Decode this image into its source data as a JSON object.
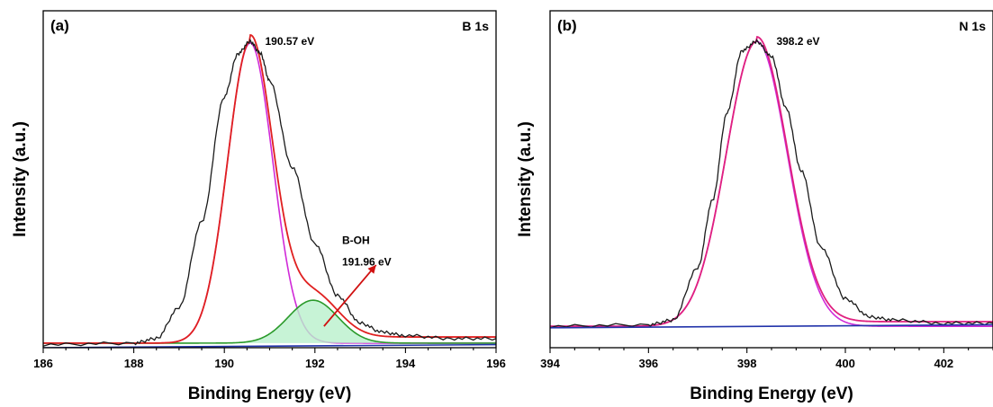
{
  "chart_data": [
    {
      "type": "line",
      "panel_label": "(a)",
      "title": "B 1s",
      "xlabel": "Binding Energy (eV)",
      "ylabel": "Intensity (a.u.)",
      "xlim": [
        186,
        196
      ],
      "ylim": [
        0,
        1.1
      ],
      "xticks": [
        186,
        188,
        190,
        192,
        194,
        196
      ],
      "grid": false,
      "background": 0.015,
      "series": [
        {
          "role": "raw",
          "color": "#1a1a1a",
          "x": [
            186,
            188,
            188.5,
            189,
            189.5,
            190,
            190.3,
            190.57,
            190.8,
            191,
            191.5,
            192,
            192.5,
            193,
            193.5,
            194,
            195,
            196
          ],
          "y": [
            0.01,
            0.015,
            0.03,
            0.13,
            0.41,
            0.82,
            0.96,
            1.0,
            0.96,
            0.87,
            0.59,
            0.34,
            0.17,
            0.08,
            0.05,
            0.04,
            0.03,
            0.03
          ]
        },
        {
          "role": "envelope",
          "color": "#e02020",
          "peaks": [
            {
              "center": 190.57,
              "sigma": 0.5,
              "height": 0.98
            },
            {
              "center": 191.96,
              "sigma": 0.55,
              "height": 0.14
            }
          ],
          "tail": 0.02
        },
        {
          "role": "component",
          "color": "#d02ad8",
          "peaks": [
            {
              "center": 190.57,
              "sigma": 0.5,
              "height": 0.98
            }
          ]
        },
        {
          "role": "component",
          "color": "#2a9a2a",
          "fill": "#b9f0cc",
          "peaks": [
            {
              "center": 191.96,
              "sigma": 0.55,
              "height": 0.14
            }
          ]
        },
        {
          "role": "baseline",
          "color": "#2233aa",
          "x": [
            186,
            196
          ],
          "y": [
            0.0,
            0.01
          ]
        }
      ],
      "annotations": [
        {
          "text": "190.57 eV",
          "x": 190.9,
          "y": 1.0
        },
        {
          "text": "B-OH",
          "x": 192.6,
          "y": 0.35
        },
        {
          "text": "191.96 eV",
          "x": 192.6,
          "y": 0.28
        }
      ],
      "arrow": {
        "from": [
          192.2,
          0.07
        ],
        "to": [
          193.35,
          0.27
        ],
        "color": "#d01010"
      }
    },
    {
      "type": "line",
      "panel_label": "(b)",
      "title": "N 1s",
      "xlabel": "Binding Energy (eV)",
      "ylabel": "Intensity (a.u.)",
      "xlim": [
        394,
        403
      ],
      "ylim": [
        0,
        1.1
      ],
      "xticks": [
        394,
        396,
        398,
        400,
        402
      ],
      "grid": false,
      "background": 0.07,
      "series": [
        {
          "role": "raw",
          "color": "#1a1a1a",
          "x": [
            394,
            396,
            396.5,
            397,
            397.3,
            397.6,
            397.9,
            398.2,
            398.5,
            398.8,
            399.1,
            399.5,
            400,
            400.5,
            401,
            402,
            403
          ],
          "y": [
            0.07,
            0.075,
            0.09,
            0.26,
            0.48,
            0.77,
            0.97,
            1.0,
            0.95,
            0.78,
            0.58,
            0.33,
            0.16,
            0.1,
            0.09,
            0.08,
            0.08
          ]
        },
        {
          "role": "envelope",
          "color": "#e02080",
          "peaks": [
            {
              "center": 398.2,
              "sigma": 0.62,
              "height": 0.93
            }
          ],
          "tail": 0.015
        },
        {
          "role": "component",
          "color": "#d02ad8",
          "peaks": [
            {
              "center": 398.2,
              "sigma": 0.62,
              "height": 0.93
            }
          ]
        },
        {
          "role": "baseline",
          "color": "#2233aa",
          "x": [
            394,
            403
          ],
          "y": [
            0.065,
            0.075
          ]
        }
      ],
      "annotations": [
        {
          "text": "398.2 eV",
          "x": 398.6,
          "y": 1.0
        }
      ]
    }
  ]
}
